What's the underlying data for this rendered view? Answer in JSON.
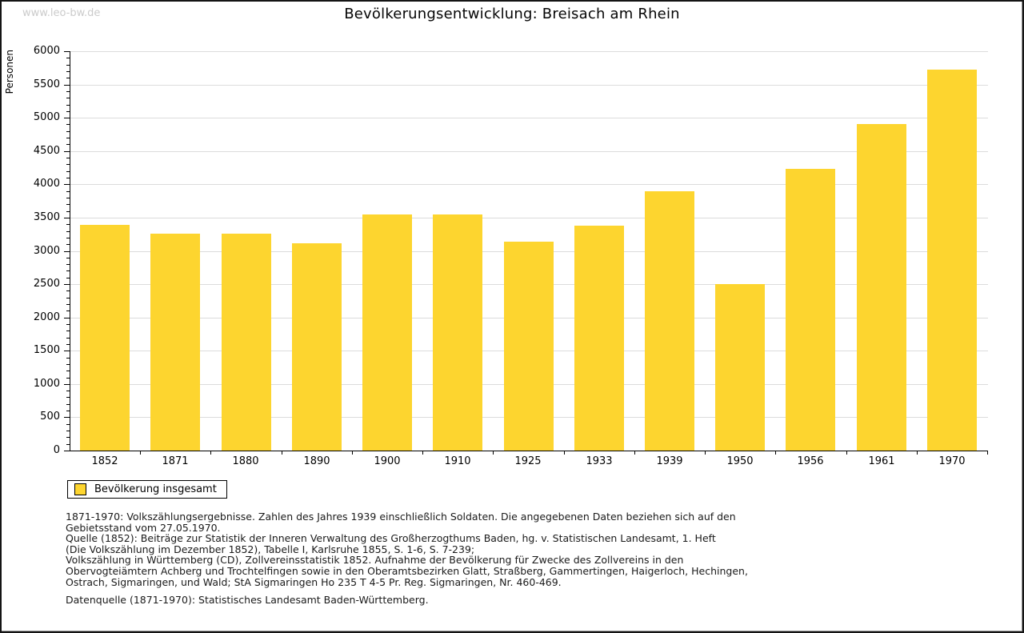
{
  "watermark": "www.leo-bw.de",
  "chart_data": {
    "type": "bar",
    "title": "Bevölkerungsentwicklung: Breisach am Rhein",
    "ylabel": "Personen",
    "xlabel": "",
    "categories": [
      "1852",
      "1871",
      "1880",
      "1890",
      "1900",
      "1910",
      "1925",
      "1933",
      "1939",
      "1950",
      "1956",
      "1961",
      "1970"
    ],
    "values": [
      3390,
      3260,
      3260,
      3110,
      3550,
      3550,
      3140,
      3380,
      3890,
      2500,
      4230,
      4910,
      5720
    ],
    "ylim": [
      0,
      6000
    ],
    "ytick_step": 500,
    "minor_tick_step": 100,
    "grid": true,
    "legend_entries": [
      "Bevölkerung insgesamt"
    ],
    "legend_position": "bottom-left"
  },
  "legend": {
    "label": "Bevölkerung insgesamt"
  },
  "footnotes": {
    "lines": [
      "1871-1970: Volkszählungsergebnisse. Zahlen des Jahres 1939 einschließlich Soldaten. Die angegebenen Daten beziehen sich auf den",
      "Gebietsstand vom 27.05.1970.",
      "Quelle (1852): Beiträge zur Statistik der Inneren Verwaltung des Großherzogthums Baden, hg. v. Statistischen Landesamt, 1. Heft",
      "(Die Volkszählung im Dezember 1852), Tabelle I, Karlsruhe 1855, S. 1-6, S. 7-239;",
      "Volkszählung in Württemberg (CD), Zollvereinsstatistik 1852. Aufnahme der Bevölkerung für Zwecke des Zollvereins in den",
      "Obervogteiämtern Achberg und Trochtelfingen sowie in den Oberamtsbezirken Glatt, Straßberg, Gammertingen, Haigerloch, Hechingen,",
      "Ostrach, Sigmaringen, und Wald; StA Sigmaringen Ho 235 T 4-5 Pr. Reg. Sigmaringen, Nr. 460-469."
    ],
    "datasource": "Datenquelle (1871-1970): Statistisches Landesamt Baden-Württemberg."
  },
  "colors": {
    "bar": "#FDD52F",
    "grid": "#DCDCDC",
    "axis": "#000000",
    "watermark_text": "#CBCBCB"
  }
}
